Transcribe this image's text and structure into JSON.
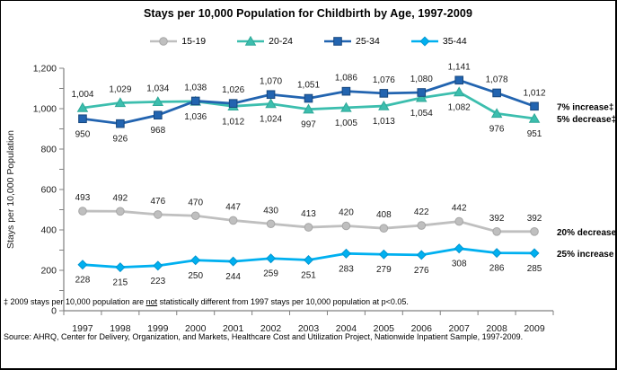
{
  "chart_data": {
    "type": "line",
    "title": "Stays per 10,000 Population for Childbirth by Age, 1997-2009",
    "ylabel": "Stays per 10,000 Population",
    "ylim": [
      0,
      1200
    ],
    "ytick_interval": 200,
    "yminor_interval": 100,
    "grid": false,
    "legend_position": "top",
    "categories": [
      1997,
      1998,
      1999,
      2000,
      2001,
      2002,
      2003,
      2004,
      2005,
      2006,
      2007,
      2008,
      2009
    ],
    "series": [
      {
        "name": "15-19",
        "color": "#BFBFBF",
        "marker_stroke": "#A6A6A6",
        "marker": "circle",
        "values": [
          493,
          492,
          476,
          470,
          447,
          430,
          413,
          420,
          408,
          422,
          442,
          392,
          392
        ],
        "label_sides": [
          "above",
          "above",
          "above",
          "above",
          "above",
          "above",
          "above",
          "above",
          "above",
          "above",
          "above",
          "above",
          "above"
        ]
      },
      {
        "name": "20-24",
        "color": "#3CBEAE",
        "marker_stroke": "#2FA898",
        "marker": "triangle",
        "values": [
          1004,
          1029,
          1034,
          1036,
          1012,
          1024,
          997,
          1005,
          1013,
          1054,
          1082,
          976,
          951
        ],
        "label_sides": [
          "above",
          "above",
          "above",
          "below",
          "below",
          "below",
          "below",
          "below",
          "below",
          "below",
          "below",
          "below",
          "below"
        ]
      },
      {
        "name": "25-34",
        "color": "#2264B0",
        "marker_stroke": "#17477E",
        "marker": "square",
        "values": [
          950,
          926,
          968,
          1038,
          1026,
          1070,
          1051,
          1086,
          1076,
          1080,
          1141,
          1078,
          1012
        ],
        "label_sides": [
          "below",
          "below",
          "below",
          "above",
          "above",
          "above",
          "above",
          "above",
          "above",
          "above",
          "above",
          "above",
          "above"
        ]
      },
      {
        "name": "35-44",
        "color": "#00B0F0",
        "marker_stroke": "#0095D0",
        "marker": "diamond",
        "values": [
          228,
          215,
          223,
          250,
          244,
          259,
          251,
          283,
          279,
          276,
          308,
          286,
          285
        ],
        "label_sides": [
          "below",
          "below",
          "below",
          "below",
          "below",
          "below",
          "below",
          "below",
          "below",
          "below",
          "below",
          "below",
          "below"
        ]
      }
    ],
    "annotations": [
      {
        "text": "7% increase‡",
        "anchor_value": 1012
      },
      {
        "text": "5% decrease‡",
        "anchor_value": 951
      },
      {
        "text": "20% decrease",
        "anchor_value": 392
      },
      {
        "text": "25% increase",
        "anchor_value": 285
      }
    ]
  },
  "footnotes": {
    "note_pre": "‡ 2009 stays per 10,000 population are ",
    "note_underlined": "not",
    "note_post": " statistically different from 1997 stays per 10,000 population at p<0.05.",
    "source": "Source: AHRQ, Center for Delivery, Organization, and Markets, Healthcare Cost and Utilization Project, Nationwide Inpatient Sample, 1997-2009."
  }
}
